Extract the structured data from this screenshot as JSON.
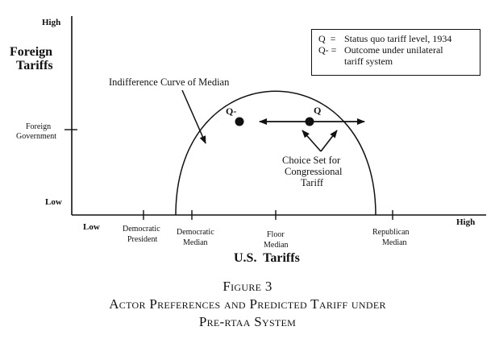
{
  "y_axis": {
    "title_line1": "Foreign",
    "title_line2": "Tariffs",
    "high": "High",
    "low": "Low",
    "mark_line1": "Foreign",
    "mark_line2": "Government"
  },
  "x_axis": {
    "title": "U.S.  Tariffs",
    "low": "Low",
    "high": "High",
    "marks": [
      {
        "line1": "Democratic",
        "line2": "President"
      },
      {
        "line1": "Democratic",
        "line2": "Median"
      },
      {
        "line1": "Floor",
        "line2": "Median"
      },
      {
        "line1": "Republican",
        "line2": "Median"
      }
    ]
  },
  "legend": {
    "q_key": "Q  =",
    "q_text": "Status quo tariff level, 1934",
    "qminus_key": "Q- =",
    "qminus_text_line1": "Outcome under unilateral",
    "qminus_text_line2": "tariff system"
  },
  "annotations": {
    "curve_label": "Indifference Curve of Median",
    "q_point": "Q",
    "qminus_point": "Q-",
    "choice_line1": "Choice Set for",
    "choice_line2": "Congressional",
    "choice_line3": "Tariff"
  },
  "caption": {
    "line1": "Figure 3",
    "line2": "Actor Preferences and Predicted Tariff under",
    "line3": "Pre-rtaa System"
  }
}
